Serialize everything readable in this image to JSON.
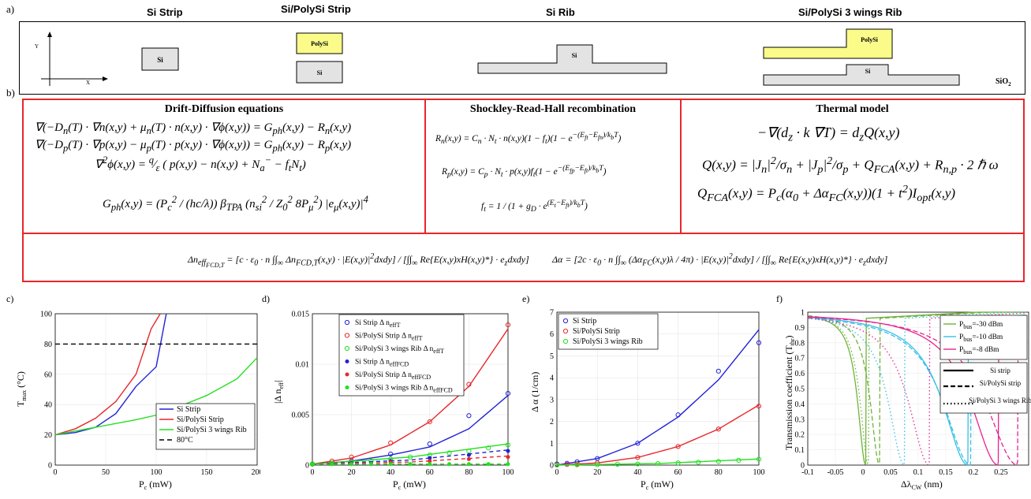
{
  "panel_a": {
    "letter": "a)",
    "titles": [
      "Si Strip",
      "Si/PolySi Strip",
      "Si Rib",
      "Si/PolySi 3 wings Rib"
    ],
    "labels": {
      "si": "Si",
      "polysi": "PolySi",
      "sio2": "SiO",
      "sio2_sub": "2",
      "y": "Y",
      "x": "X"
    }
  },
  "panel_b": {
    "letter": "b)",
    "drift_title": "Drift-Diffusion equations",
    "srh_title": "Shockley-Read-Hall recombination",
    "thermal_title": "Thermal model",
    "drift_eqs": [
      "∇(−D<sub>n</sub>(T) · ∇n(x,y) + μ<sub>n</sub>(T) · n(x,y) · ∇ϕ(x,y)) = G<sub>ph</sub>(x,y) − R<sub>n</sub>(x,y)",
      "∇(−D<sub>p</sub>(T) · ∇p(x,y) − μ<sub>p</sub>(T) · p(x,y) · ∇ϕ(x,y)) = G<sub>ph</sub>(x,y) − R<sub>p</sub>(x,y)",
      "∇<sup>2</sup>ϕ(x,y) = <sup>q</sup>⁄<sub>ε</sub> ( p(x,y) − n(x,y) + N<sub>a</sub><sup>−</sup> − f<sub>t</sub>N<sub>t</sub>)",
      "G<sub>ph</sub>(x,y) = (P<sub>c</sub><sup>2</sup> / (hc/λ)) β<sub>TPA</sub> (n<sub>si</sub><sup>2</sup> / Z<sub>0</sub><sup>2</sup> 8P<sub>μ</sub><sup>2</sup>) |e<sub>μ</sub>(x,y)|<sup>4</sup>"
    ],
    "srh_eqs": [
      "R<sub>n</sub>(x,y) = C<sub>n</sub> · N<sub>t</sub> · n(x,y)(1 − f<sub>t</sub>)(1 − e<sup>−(E<sub>ft</sub>−E<sub>fn</sub>)/k<sub>b</sub>T</sup>)",
      "R<sub>p</sub>(x,y) = C<sub>p</sub> · N<sub>t</sub> · p(x,y)f<sub>t</sub>(1 − e<sup>−(E<sub>fp</sub>−E<sub>ft</sub>)/k<sub>b</sub>T</sup>)",
      "f<sub>t</sub> = 1 / (1 + g<sub>D</sub> · e<sup>(E<sub>t</sub>−E<sub>ft</sub>)/k<sub>b</sub>T</sup>)"
    ],
    "thermal_eqs": [
      "−∇(d<sub>z</sub> · k ∇T) = d<sub>z</sub>Q(x,y)",
      "Q(x,y) = |J<sub>n</sub>|<sup>2</sup>/σ<sub>n</sub> + |J<sub>p</sub>|<sup>2</sup>/σ<sub>p</sub> + Q<sub>FCA</sub>(x,y) + R<sub>n,p</sub> · 2 ℏ ω",
      "Q<sub>FCA</sub>(x,y) = P<sub>c</sub>(α<sub>0</sub> + Δα<sub>FC</sub>(x,y))(1 + t<sup>2</sup>)I<sub>opt</sub>(x,y)"
    ],
    "neff_eq": "Δn<sub>eff<sub>FCD,T</sub></sub> = [c · ε<sub>0</sub> · n ∫∫<sub>∞</sub> Δn<sub>FCD,T</sub>(x,y) · |E(x,y)|<sup>2</sup>dxdy] / [∫∫<sub>∞</sub> Re{E(x,y)xH(x,y)*} · e<sub>z</sub>dxdy]",
    "alpha_eq": "Δα = [2c · ε<sub>0</sub> · n ∫∫<sub>∞</sub> (Δα<sub>FC</sub>(x,y)λ / 4π) · |E(x,y)|<sup>2</sup>dxdy] / [∫∫<sub>∞</sub> Re{E(x,y)xH(x,y)*} · e<sub>z</sub>dxdy]"
  },
  "colors": {
    "red": "#e8262b",
    "blue": "#2121d9",
    "green": "#22e01e",
    "cyan": "#35c0e6",
    "olive": "#70b33a",
    "magenta": "#e6248f",
    "yellow": "#fbfb8a",
    "gray": "#e3e3e3"
  },
  "chart_data": [
    {
      "panel": "c)",
      "type": "line",
      "xlabel": "P",
      "xlabel_sub": "c",
      "xlabel_unit": " (mW)",
      "ylabel": "T",
      "ylabel_sub": "max",
      "ylabel_unit": " (°C)",
      "xlim": [
        0,
        200
      ],
      "ylim": [
        0,
        100
      ],
      "xticks": [
        "0",
        "50",
        "100",
        "150",
        "200"
      ],
      "yticks": [
        "0",
        "20",
        "40",
        "60",
        "80",
        "100"
      ],
      "series": [
        {
          "name": "Si Strip",
          "color": "#2121d9",
          "dash": "",
          "x": [
            0,
            20,
            40,
            60,
            80,
            100,
            110
          ],
          "y": [
            20,
            21.5,
            25,
            34,
            52,
            65,
            100
          ]
        },
        {
          "name": "Si/PolySi Strip",
          "color": "#e8262b",
          "dash": "",
          "x": [
            0,
            20,
            40,
            60,
            80,
            95,
            104
          ],
          "y": [
            20,
            24,
            31,
            42,
            60,
            90,
            100
          ]
        },
        {
          "name": "Si/PolySi 3 wings Rib",
          "color": "#22e01e",
          "dash": "",
          "x": [
            0,
            40,
            80,
            100,
            120,
            150,
            180,
            200
          ],
          "y": [
            20,
            25,
            30,
            33,
            38,
            46,
            57,
            71
          ]
        },
        {
          "name": "80°C",
          "color": "#000000",
          "dash": "6,4",
          "x": [
            0,
            200
          ],
          "y": [
            80,
            80
          ]
        }
      ],
      "legend": "bottom-right"
    },
    {
      "panel": "d)",
      "type": "scatter",
      "xlabel": "P",
      "xlabel_sub": "c",
      "xlabel_unit": " (mW)",
      "ylabel": "|Δ n",
      "ylabel_sub": "eff",
      "ylabel_unit": "|",
      "xlim": [
        0,
        100
      ],
      "ylim": [
        0,
        0.015
      ],
      "xticks": [
        "0",
        "20",
        "40",
        "60",
        "80",
        "100"
      ],
      "yticks": [
        "0",
        "0.005",
        "0.01",
        "0.015"
      ],
      "series": [
        {
          "name": "Si Strip Δ n",
          "name_sub": "effT",
          "color": "#2121d9",
          "marker": "open",
          "x": [
            0,
            10,
            20,
            40,
            60,
            80,
            100
          ],
          "y": [
            0.0001,
            0.0002,
            0.0004,
            0.0011,
            0.0021,
            0.0049,
            0.0071
          ],
          "fit": [
            [
              0,
              0.0001
            ],
            [
              20,
              0.0004
            ],
            [
              40,
              0.001
            ],
            [
              60,
              0.0018
            ],
            [
              80,
              0.0036
            ],
            [
              100,
              0.0069
            ]
          ]
        },
        {
          "name": "Si/PolySi Strip Δ n",
          "name_sub": "effT",
          "color": "#e8262b",
          "marker": "open",
          "x": [
            0,
            10,
            20,
            40,
            60,
            80,
            100
          ],
          "y": [
            0.0001,
            0.0004,
            0.0008,
            0.0022,
            0.0043,
            0.008,
            0.0139
          ],
          "fit": [
            [
              0,
              0.0001
            ],
            [
              20,
              0.0007
            ],
            [
              40,
              0.002
            ],
            [
              60,
              0.0043
            ],
            [
              80,
              0.0078
            ],
            [
              100,
              0.0135
            ]
          ]
        },
        {
          "name": "Si/PolySi 3 wings Rib Δ n",
          "name_sub": "effT",
          "color": "#22e01e",
          "marker": "open",
          "x": [
            0,
            10,
            20,
            30,
            40,
            50,
            60,
            70,
            80,
            90,
            100
          ],
          "y": [
            0.0001,
            0.0002,
            0.0003,
            0.0004,
            0.0006,
            0.0008,
            0.001,
            0.0012,
            0.0014,
            0.0017,
            0.002
          ],
          "fit": [
            [
              0,
              0.0001
            ],
            [
              50,
              0.0008
            ],
            [
              100,
              0.0021
            ]
          ]
        },
        {
          "name": "Si Strip Δ n",
          "name_sub": "effFCD",
          "color": "#2121d9",
          "marker": "filled",
          "x": [
            0,
            10,
            20,
            40,
            60,
            80,
            100
          ],
          "y": [
            0.0001,
            0.00012,
            0.0002,
            0.0004,
            0.0007,
            0.001,
            0.0014
          ],
          "fit": [
            [
              0,
              0.0001
            ],
            [
              50,
              0.0005
            ],
            [
              100,
              0.0015
            ]
          ],
          "dash": "5,4"
        },
        {
          "name": "Si/PolySi Strip Δ n",
          "name_sub": "effFCD",
          "color": "#e8262b",
          "marker": "filled",
          "x": [
            0,
            10,
            20,
            40,
            60,
            80,
            100
          ],
          "y": [
            0.0001,
            0.0001,
            0.00015,
            0.0003,
            0.0004,
            0.0006,
            0.0008
          ],
          "fit": [
            [
              0,
              0.0001
            ],
            [
              50,
              0.0003
            ],
            [
              100,
              0.0009
            ]
          ],
          "dash": "5,4"
        },
        {
          "name": "Si/PolySi 3 wings Rib Δ n",
          "name_sub": "effFCD",
          "color": "#22e01e",
          "marker": "filled",
          "x": [
            0,
            10,
            20,
            30,
            40,
            50,
            60,
            70,
            80,
            90,
            100
          ],
          "y": [
            0.0001,
            0.0001,
            0.0001,
            0.0001,
            0.0001,
            0.0001,
            0.0001,
            0.0001,
            0.0001,
            0.0001,
            0.0001
          ],
          "fit": [
            [
              0,
              0.0001
            ],
            [
              100,
              0.0001
            ]
          ],
          "dash": "5,4"
        }
      ],
      "legend": "top-left"
    },
    {
      "panel": "e)",
      "type": "scatter",
      "xlabel": "P",
      "xlabel_sub": "c",
      "xlabel_unit": " (mW)",
      "ylabel": "Δ α (1/cm)",
      "ylabel_sub": "",
      "ylabel_unit": "",
      "xlim": [
        0,
        100
      ],
      "ylim": [
        0,
        7
      ],
      "xticks": [
        "0",
        "20",
        "40",
        "60",
        "80",
        "100"
      ],
      "yticks": [
        "0",
        "1",
        "2",
        "3",
        "4",
        "5",
        "6",
        "7"
      ],
      "series": [
        {
          "name": "Si Strip",
          "color": "#2121d9",
          "x": [
            0,
            5,
            10,
            20,
            40,
            60,
            80,
            100
          ],
          "y": [
            0.05,
            0.08,
            0.15,
            0.3,
            1.0,
            2.3,
            4.3,
            5.6
          ],
          "fit": [
            [
              0,
              0
            ],
            [
              20,
              0.3
            ],
            [
              40,
              1.0
            ],
            [
              60,
              2.2
            ],
            [
              80,
              3.9
            ],
            [
              100,
              6.2
            ]
          ]
        },
        {
          "name": "Si/PolySi Strip",
          "color": "#e8262b",
          "x": [
            0,
            5,
            10,
            20,
            40,
            60,
            80,
            100
          ],
          "y": [
            0.02,
            0.03,
            0.05,
            0.1,
            0.35,
            0.85,
            1.65,
            2.7
          ],
          "fit": [
            [
              0,
              0
            ],
            [
              20,
              0.1
            ],
            [
              40,
              0.35
            ],
            [
              60,
              0.85
            ],
            [
              80,
              1.65
            ],
            [
              100,
              2.75
            ]
          ]
        },
        {
          "name": "Si/PolySi 3 wings Rib",
          "color": "#22e01e",
          "x": [
            0,
            10,
            20,
            30,
            40,
            50,
            60,
            70,
            80,
            90,
            100
          ],
          "y": [
            0,
            0.01,
            0.02,
            0.04,
            0.05,
            0.07,
            0.1,
            0.13,
            0.17,
            0.22,
            0.27
          ],
          "fit": [
            [
              0,
              0
            ],
            [
              50,
              0.07
            ],
            [
              100,
              0.28
            ]
          ]
        }
      ],
      "legend": "top-left"
    },
    {
      "panel": "f)",
      "type": "line",
      "xlabel": "Δλ",
      "xlabel_sub": "CW",
      "xlabel_unit": " (nm)",
      "ylabel": "Transmission coefficient (T",
      "ylabel_sub": "thr",
      "ylabel_unit": ")",
      "xlim": [
        -0.1,
        0.3
      ],
      "ylim": [
        0,
        1
      ],
      "xticks": [
        "-0.1",
        "-0.05",
        "0",
        "0.05",
        "0.1",
        "0.15",
        "0.2",
        "0.25"
      ],
      "yticks": [
        "0",
        "0.1",
        "0.2",
        "0.3",
        "0.4",
        "0.5",
        "0.6",
        "0.7",
        "0.8",
        "0.9",
        "1"
      ],
      "power_legend": [
        {
          "label": "P",
          "sub": "bus",
          "value": "=-30 dBm",
          "color": "#70b33a"
        },
        {
          "label": "P",
          "sub": "bus",
          "value": "=-10 dBm",
          "color": "#35c0e6"
        },
        {
          "label": "P",
          "sub": "bus",
          "value": "=-8 dBm",
          "color": "#e6248f"
        }
      ],
      "style_legend": [
        {
          "label": "Si strip",
          "dash": ""
        },
        {
          "label": "Si/PolySi strip",
          "dash": "6,3"
        },
        {
          "label": "Si/PolySi 3 wings Rib",
          "dash": "1.5,3"
        }
      ],
      "dips": [
        {
          "color": "#70b33a",
          "dash": "",
          "center": 0.005,
          "width": 0.035
        },
        {
          "color": "#70b33a",
          "dash": "6,3",
          "center": 0.03,
          "width": 0.04
        },
        {
          "color": "#70b33a",
          "dash": "1.5,3",
          "center": 0.01,
          "width": 0.036
        },
        {
          "color": "#35c0e6",
          "dash": "",
          "center": 0.19,
          "width": 0.11
        },
        {
          "color": "#35c0e6",
          "dash": "6,3",
          "center": 0.195,
          "width": 0.12
        },
        {
          "color": "#35c0e6",
          "dash": "1.5,3",
          "center": 0.075,
          "width": 0.07
        },
        {
          "color": "#e6248f",
          "dash": "",
          "center": 0.245,
          "width": 0.12
        },
        {
          "color": "#e6248f",
          "dash": "6,3",
          "center": 0.28,
          "width": 0.14
        },
        {
          "color": "#e6248f",
          "dash": "1.5,3",
          "center": 0.12,
          "width": 0.09
        }
      ]
    }
  ]
}
